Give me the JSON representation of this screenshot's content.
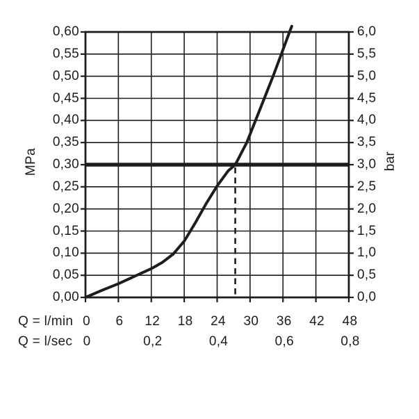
{
  "chart_data": {
    "type": "line",
    "title": "",
    "grid": true,
    "colors": {
      "ink": "#1d1d1b",
      "background": "#ffffff"
    },
    "y_left": {
      "label": "MPa",
      "min": 0,
      "max": 0.6,
      "step": 0.05,
      "tick_labels": [
        "0,60",
        "0,55",
        "0,50",
        "0,45",
        "0,40",
        "0,35",
        "0,30",
        "0,25",
        "0,20",
        "0,15",
        "0,10",
        "0,05",
        "0,00"
      ]
    },
    "y_right": {
      "label": "bar",
      "min": 0,
      "max": 6,
      "step": 0.5,
      "tick_labels": [
        "6,0",
        "5,5",
        "5,0",
        "4,5",
        "4,0",
        "3,5",
        "3,0",
        "2,5",
        "2,0",
        "1,5",
        "1,0",
        "0,5",
        "0,0"
      ]
    },
    "x_lmin": {
      "label": "Q = l/min",
      "min": 0,
      "max": 48,
      "step": 6,
      "tick_labels": [
        "0",
        "6",
        "12",
        "18",
        "24",
        "30",
        "36",
        "42",
        "48"
      ]
    },
    "x_lsec": {
      "label": "Q = l/sec",
      "tick_labels": [
        "0",
        "0,2",
        "0,4",
        "0,6",
        "0,8"
      ],
      "tick_positions_lmin": [
        0,
        12,
        24,
        36,
        48
      ]
    },
    "series": [
      {
        "name": "flow-pressure-curve",
        "points_lmin_mpa": [
          [
            0,
            0.0
          ],
          [
            3,
            0.016
          ],
          [
            6,
            0.031
          ],
          [
            9,
            0.048
          ],
          [
            12,
            0.065
          ],
          [
            14,
            0.079
          ],
          [
            16,
            0.098
          ],
          [
            18,
            0.127
          ],
          [
            20,
            0.168
          ],
          [
            22,
            0.212
          ],
          [
            24,
            0.252
          ],
          [
            26,
            0.286
          ],
          [
            27.3,
            0.3
          ],
          [
            29.4,
            0.35
          ],
          [
            31.0,
            0.4
          ],
          [
            32.6,
            0.45
          ],
          [
            34.2,
            0.5
          ],
          [
            35.7,
            0.55
          ],
          [
            37.2,
            0.6
          ],
          [
            37.6,
            0.613
          ]
        ]
      }
    ],
    "reference_line": {
      "value_mpa": 0.3,
      "value_bar": 3.0
    },
    "dashed_marker": {
      "x_lmin": 27.3,
      "from_mpa": 0.3,
      "to_mpa": 0.0
    }
  }
}
